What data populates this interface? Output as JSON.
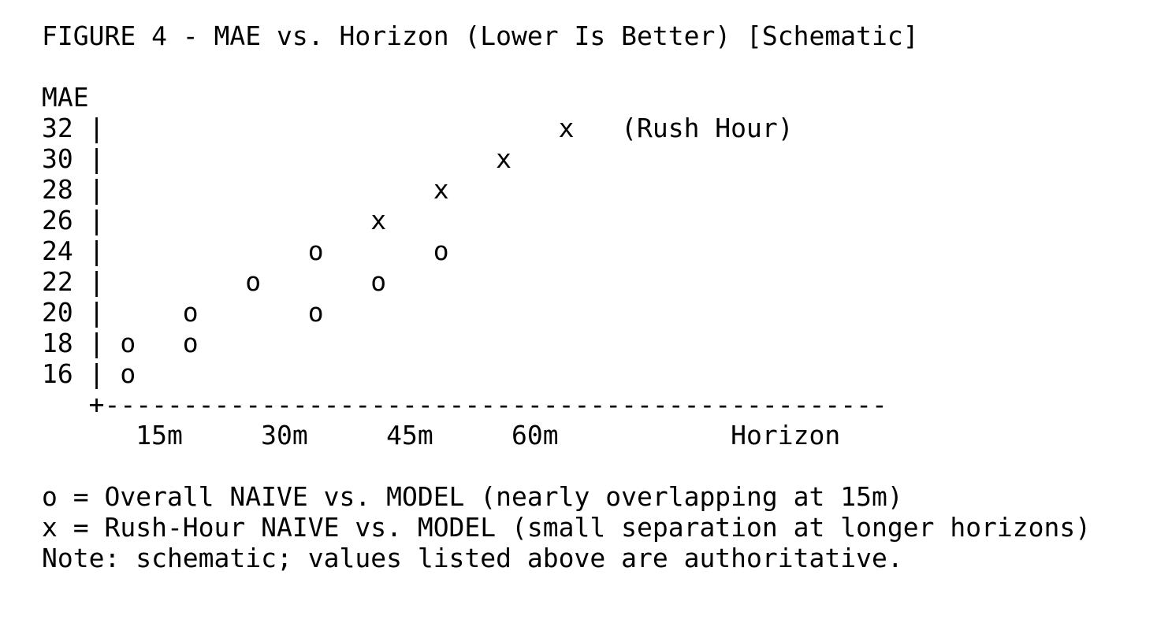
{
  "figure": {
    "title": "FIGURE 4 - MAE vs. Horizon (Lower Is Better) [Schematic]"
  },
  "ascii": {
    "ylabel_line": "MAE",
    "row_32": "32 |                             x   (Rush Hour)",
    "row_30": "30 |                         x",
    "row_28": "28 |                     x",
    "row_26": "26 |                 x",
    "row_24": "24 |             o       o",
    "row_22": "22 |         o       o",
    "row_20": "20 |     o       o",
    "row_18": "18 | o   o",
    "row_16": "16 | o",
    "axis_line": "   +--------------------------------------------------",
    "tick_line": "      15m     30m     45m     60m           Horizon",
    "legend_o": "o = Overall NAIVE vs. MODEL (nearly overlapping at 15m)",
    "legend_x": "x = Rush-Hour NAIVE vs. MODEL (small separation at longer horizons)",
    "note": "Note: schematic; values listed above are authoritative."
  },
  "chart_data": {
    "type": "scatter",
    "title": "FIGURE 4 - MAE vs. Horizon (Lower Is Better) [Schematic]",
    "xlabel": "Horizon",
    "ylabel": "MAE",
    "x_tick_labels": [
      "15m",
      "30m",
      "45m",
      "60m"
    ],
    "x_tick_grid_cols": [
      7,
      15,
      23,
      31
    ],
    "y_ticks": [
      32,
      30,
      28,
      26,
      24,
      22,
      20,
      18,
      16
    ],
    "ylim": [
      16,
      32
    ],
    "grid": false,
    "legend_position": "below",
    "series": [
      {
        "name": "Overall NAIVE vs. MODEL",
        "marker": "o",
        "legend_text": "o = Overall NAIVE vs. MODEL (nearly overlapping at 15m)",
        "points": [
          {
            "grid_col": 5,
            "mae": 16
          },
          {
            "grid_col": 5,
            "mae": 18
          },
          {
            "grid_col": 9,
            "mae": 18
          },
          {
            "grid_col": 9,
            "mae": 20
          },
          {
            "grid_col": 13,
            "mae": 22
          },
          {
            "grid_col": 17,
            "mae": 20
          },
          {
            "grid_col": 17,
            "mae": 24
          },
          {
            "grid_col": 21,
            "mae": 22
          },
          {
            "grid_col": 25,
            "mae": 24
          }
        ]
      },
      {
        "name": "Rush-Hour NAIVE vs. MODEL",
        "marker": "x",
        "legend_text": "x = Rush-Hour NAIVE vs. MODEL (small separation at longer horizons)",
        "annotation": "(Rush Hour)",
        "points": [
          {
            "grid_col": 21,
            "mae": 26
          },
          {
            "grid_col": 25,
            "mae": 28
          },
          {
            "grid_col": 29,
            "mae": 30
          },
          {
            "grid_col": 33,
            "mae": 32
          }
        ]
      }
    ],
    "note": "Note: schematic; values listed above are authoritative."
  }
}
